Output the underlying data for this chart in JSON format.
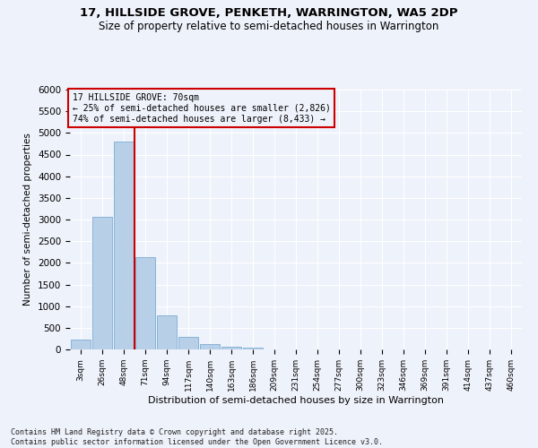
{
  "title": "17, HILLSIDE GROVE, PENKETH, WARRINGTON, WA5 2DP",
  "subtitle": "Size of property relative to semi-detached houses in Warrington",
  "xlabel": "Distribution of semi-detached houses by size in Warrington",
  "ylabel": "Number of semi-detached properties",
  "footer": "Contains HM Land Registry data © Crown copyright and database right 2025.\nContains public sector information licensed under the Open Government Licence v3.0.",
  "categories": [
    "3sqm",
    "26sqm",
    "48sqm",
    "71sqm",
    "94sqm",
    "117sqm",
    "140sqm",
    "163sqm",
    "186sqm",
    "209sqm",
    "231sqm",
    "254sqm",
    "277sqm",
    "300sqm",
    "323sqm",
    "346sqm",
    "369sqm",
    "391sqm",
    "414sqm",
    "437sqm",
    "460sqm"
  ],
  "bar_values": [
    230,
    3060,
    4800,
    2140,
    790,
    300,
    115,
    65,
    35,
    0,
    0,
    0,
    0,
    0,
    0,
    0,
    0,
    0,
    0,
    0,
    0
  ],
  "bar_color": "#b8cfe8",
  "bar_edge_color": "#7aadd4",
  "property_label": "17 HILLSIDE GROVE: 70sqm",
  "pct_smaller": 25,
  "pct_larger": 74,
  "n_smaller": 2826,
  "n_larger": 8433,
  "vline_color": "#cc0000",
  "vline_x_index": 2.48,
  "ylim": [
    0,
    6000
  ],
  "yticks": [
    0,
    500,
    1000,
    1500,
    2000,
    2500,
    3000,
    3500,
    4000,
    4500,
    5000,
    5500,
    6000
  ],
  "annotation_box_color": "#cc0000",
  "background_color": "#eef2fa",
  "grid_color": "#ffffff"
}
